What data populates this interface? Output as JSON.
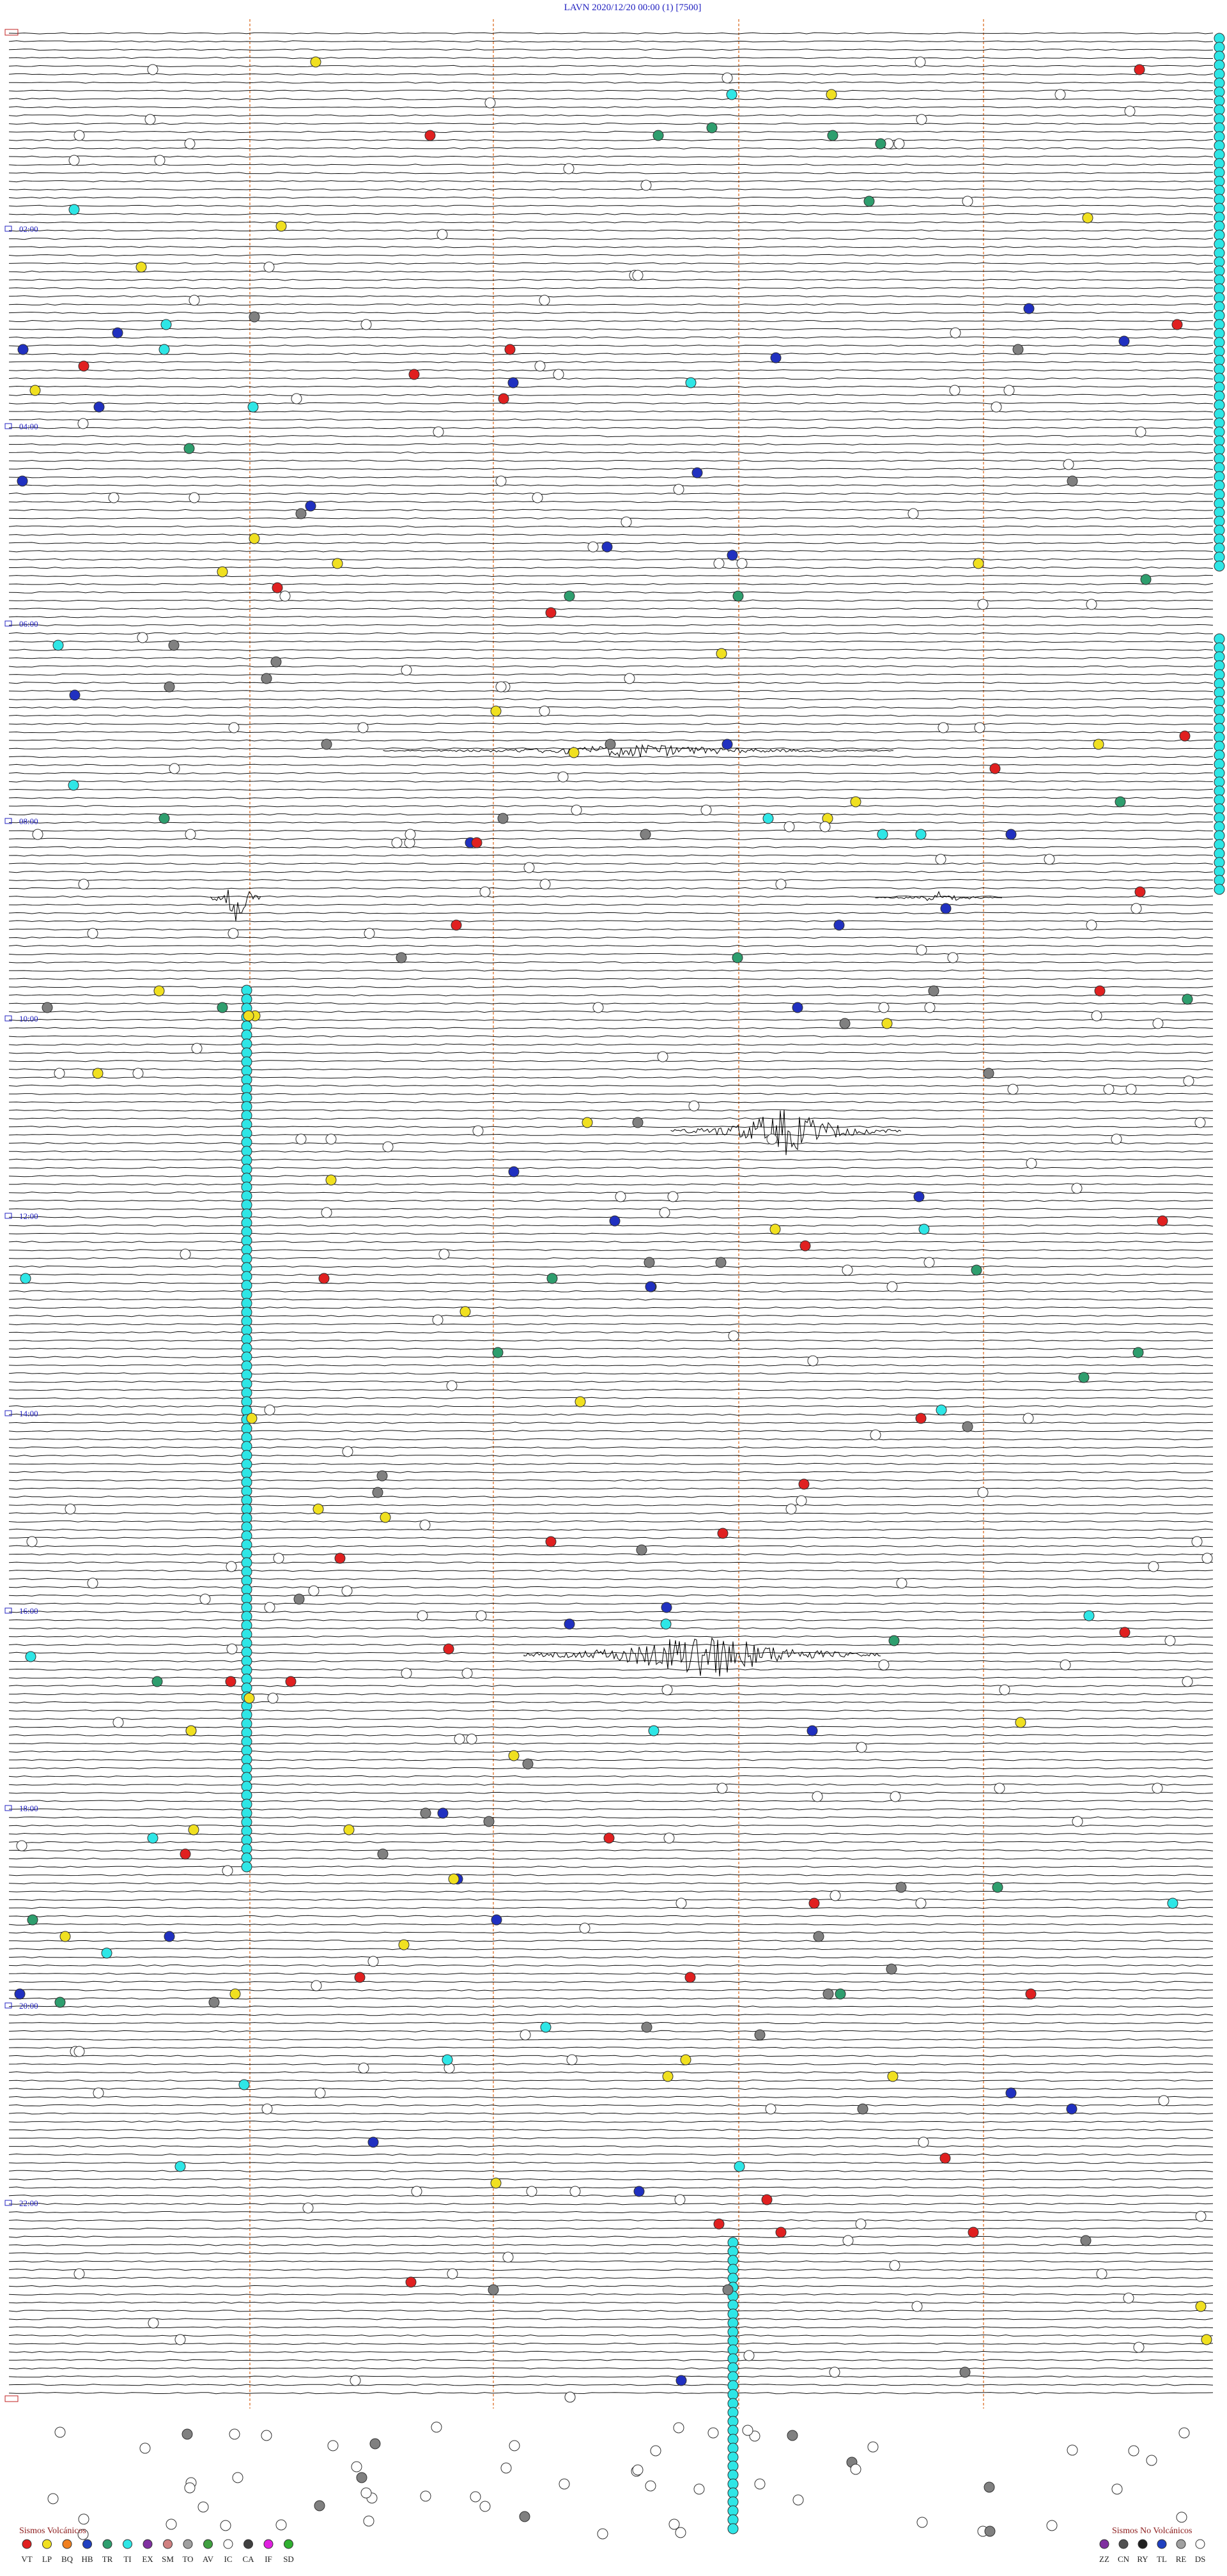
{
  "header": {
    "title": "LAVN     2020/12/20 00:00     (1)     [7500]"
  },
  "time_labels": [
    "02:00",
    "04:00",
    "06:00",
    "08:00",
    "10:00",
    "12:00",
    "14:00",
    "16:00",
    "18:00",
    "20:00",
    "22:00"
  ],
  "legend_volcanic": {
    "title": "Sismos Volcánicos",
    "codes": [
      "VT",
      "LP",
      "BQ",
      "HB",
      "TR",
      "TI",
      "EX",
      "SM",
      "TO",
      "AV",
      "IC",
      "CA",
      "IF",
      "SD"
    ]
  },
  "legend_non_volcanic": {
    "title": "Sismos No Volcánicos",
    "codes": [
      "ZZ",
      "CN",
      "RY",
      "TL",
      "RE",
      "DS"
    ]
  }
}
